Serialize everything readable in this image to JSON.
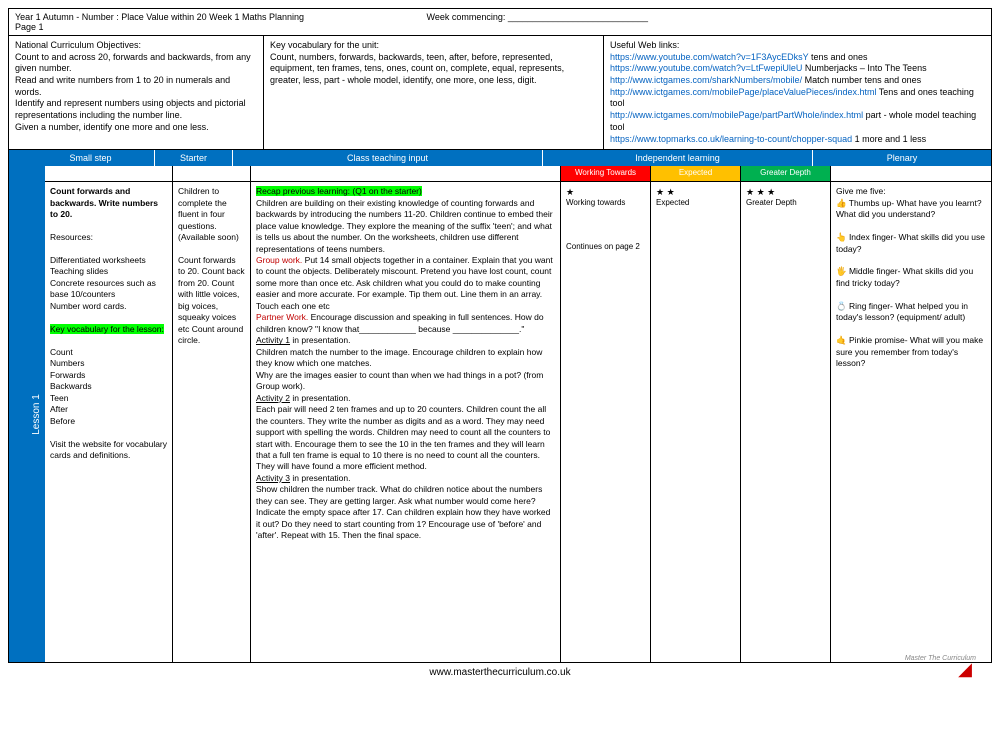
{
  "header": {
    "title": "Year 1 Autumn -  Number : Place Value within 20 Week 1 Maths Planning",
    "week_commencing_label": "Week commencing:",
    "week_commencing_line": "____________________________",
    "page": "Page 1"
  },
  "top": {
    "objectives_title": "National Curriculum Objectives:",
    "objectives_body": "Count to and across 20, forwards and backwards, from any given number.\nRead and write numbers from 1 to 20 in numerals and words.\nIdentify and represent numbers using objects and pictorial representations including the number line.\nGiven a number, identify one more and one less.",
    "vocab_title": "Key vocabulary for the unit:",
    "vocab_body": "Count, numbers, forwards, backwards, teen, after, before, represented, equipment, ten frames, tens, ones, count on, complete, equal, represents, greater, less, part - whole model, identify, one more, one less, digit.",
    "links_title": "Useful Web links:",
    "links": [
      {
        "url": "https://www.youtube.com/watch?v=1F3AycEDksY",
        "desc": " tens and ones"
      },
      {
        "url": "https://www.youtube.com/watch?v=LtFwepiUleU",
        "desc": "  Numberjacks – Into The Teens"
      },
      {
        "url": "http://www.ictgames.com/sharkNumbers/mobile/",
        "desc": "  Match number tens and ones"
      },
      {
        "url": "http://www.ictgames.com/mobilePage/placeValuePieces/index.html",
        "desc": " Tens and ones teaching tool"
      },
      {
        "url": "http://www.ictgames.com/mobilePage/partPartWhole/index.html",
        "desc": " part - whole model teaching tool"
      },
      {
        "url": "https://www.topmarks.co.uk/learning-to-count/chopper-squad",
        "desc": "  1 more and 1 less"
      }
    ]
  },
  "columns": {
    "small_step": "Small step",
    "starter": "Starter",
    "teaching": "Class teaching input",
    "independent": "Independent learning",
    "plenary": "Plenary",
    "wt": "Working Towards",
    "ex": "Expected",
    "gd": "Greater Depth"
  },
  "lesson_label": "Lesson 1",
  "small_step": {
    "title": "Count forwards and backwards. Write numbers to 20.",
    "resources_label": "Resources:",
    "resources_body": "Differentiated worksheets\nTeaching slides\nConcrete resources such as base 10/counters\nNumber word cards.",
    "vocab_label": "Key vocabulary for the lesson:",
    "vocab_list": "Count\nNumbers\nForwards\nBackwards\nTeen\nAfter\nBefore",
    "visit": "Visit the website for vocabulary cards and definitions."
  },
  "starter": "Children to complete the fluent in four questions. (Available soon)\n\nCount forwards to 20. Count back from 20. Count with little voices, big voices, squeaky voices etc Count around circle.",
  "teaching": {
    "recap": "Recap previous learning: (Q1 on the starter)",
    "para1": "Children are building on their existing knowledge of counting forwards and backwards by introducing the numbers 11-20. Children continue to embed their place value knowledge. They explore the meaning of the suffix 'teen'; and what is tells us about the number. On the worksheets, children use different representations of teens numbers.",
    "group_label": "Group work.",
    "group_body": " Put 14 small objects together in a container. Explain that you want to count the objects. Deliberately miscount. Pretend you have lost count, count some more than once etc. Ask children what you could do to make counting easier and more accurate. For example. Tip them out. Line them in an array. Touch each one etc",
    "partner_label": "Partner Work.",
    "partner_body": "  Encourage discussion and speaking in full sentences. How do children know?  \"I know that____________ because ______________.\"",
    "act1_label": "Activity 1",
    "act1_suffix": " in presentation.",
    "act1_body": "Children match the number to the image. Encourage children to explain how they know which one matches.\nWhy are the images easier to count than when we had things in a pot? (from Group work).",
    "act2_label": "Activity 2",
    "act2_suffix": " in presentation.",
    "act2_body": "Each pair will need 2 ten frames and up to 20 counters.\nChildren count the all the counters. They write the number as digits and as a word. They may need support with spelling the words. Children may need to count all the counters to start with. Encourage them to see the 10 in the ten frames and they will learn that a full ten frame is equal to 10 there is no need to count all the counters. They will have found a more efficient method.",
    "act3_label": "Activity 3",
    "act3_suffix": " in presentation.",
    "act3_body": "Show children the number track.  What do children notice about the numbers they can see. They are getting larger. Ask what number would come here? Indicate the empty space after 17. Can children explain how they have worked it out? Do they need to start counting from 1? Encourage use of 'before' and 'after'. Repeat with 15. Then the final space."
  },
  "ind": {
    "wt_stars": "★",
    "wt_text": "Working towards",
    "ex_stars": "★ ★",
    "ex_text": "Expected",
    "gd_stars": "★ ★ ★",
    "gd_text": "Greater Depth",
    "continue": "Continues on page 2"
  },
  "plenary": {
    "title": "Give me five:",
    "thumb": "👍 Thumbs up- What have you learnt? What did you understand?",
    "index": "👆 Index finger- What skills did you use today?",
    "middle": "🖐 Middle finger- What skills did you find tricky today?",
    "ring": "💍 Ring finger- What helped you in today's lesson? (equipment/ adult)",
    "pinkie": "🤙 Pinkie promise- What will you make sure you remember from today's lesson?"
  },
  "footer": {
    "site": "www.masterthecurriculum.co.uk",
    "brand": "Master The Curriculum"
  }
}
